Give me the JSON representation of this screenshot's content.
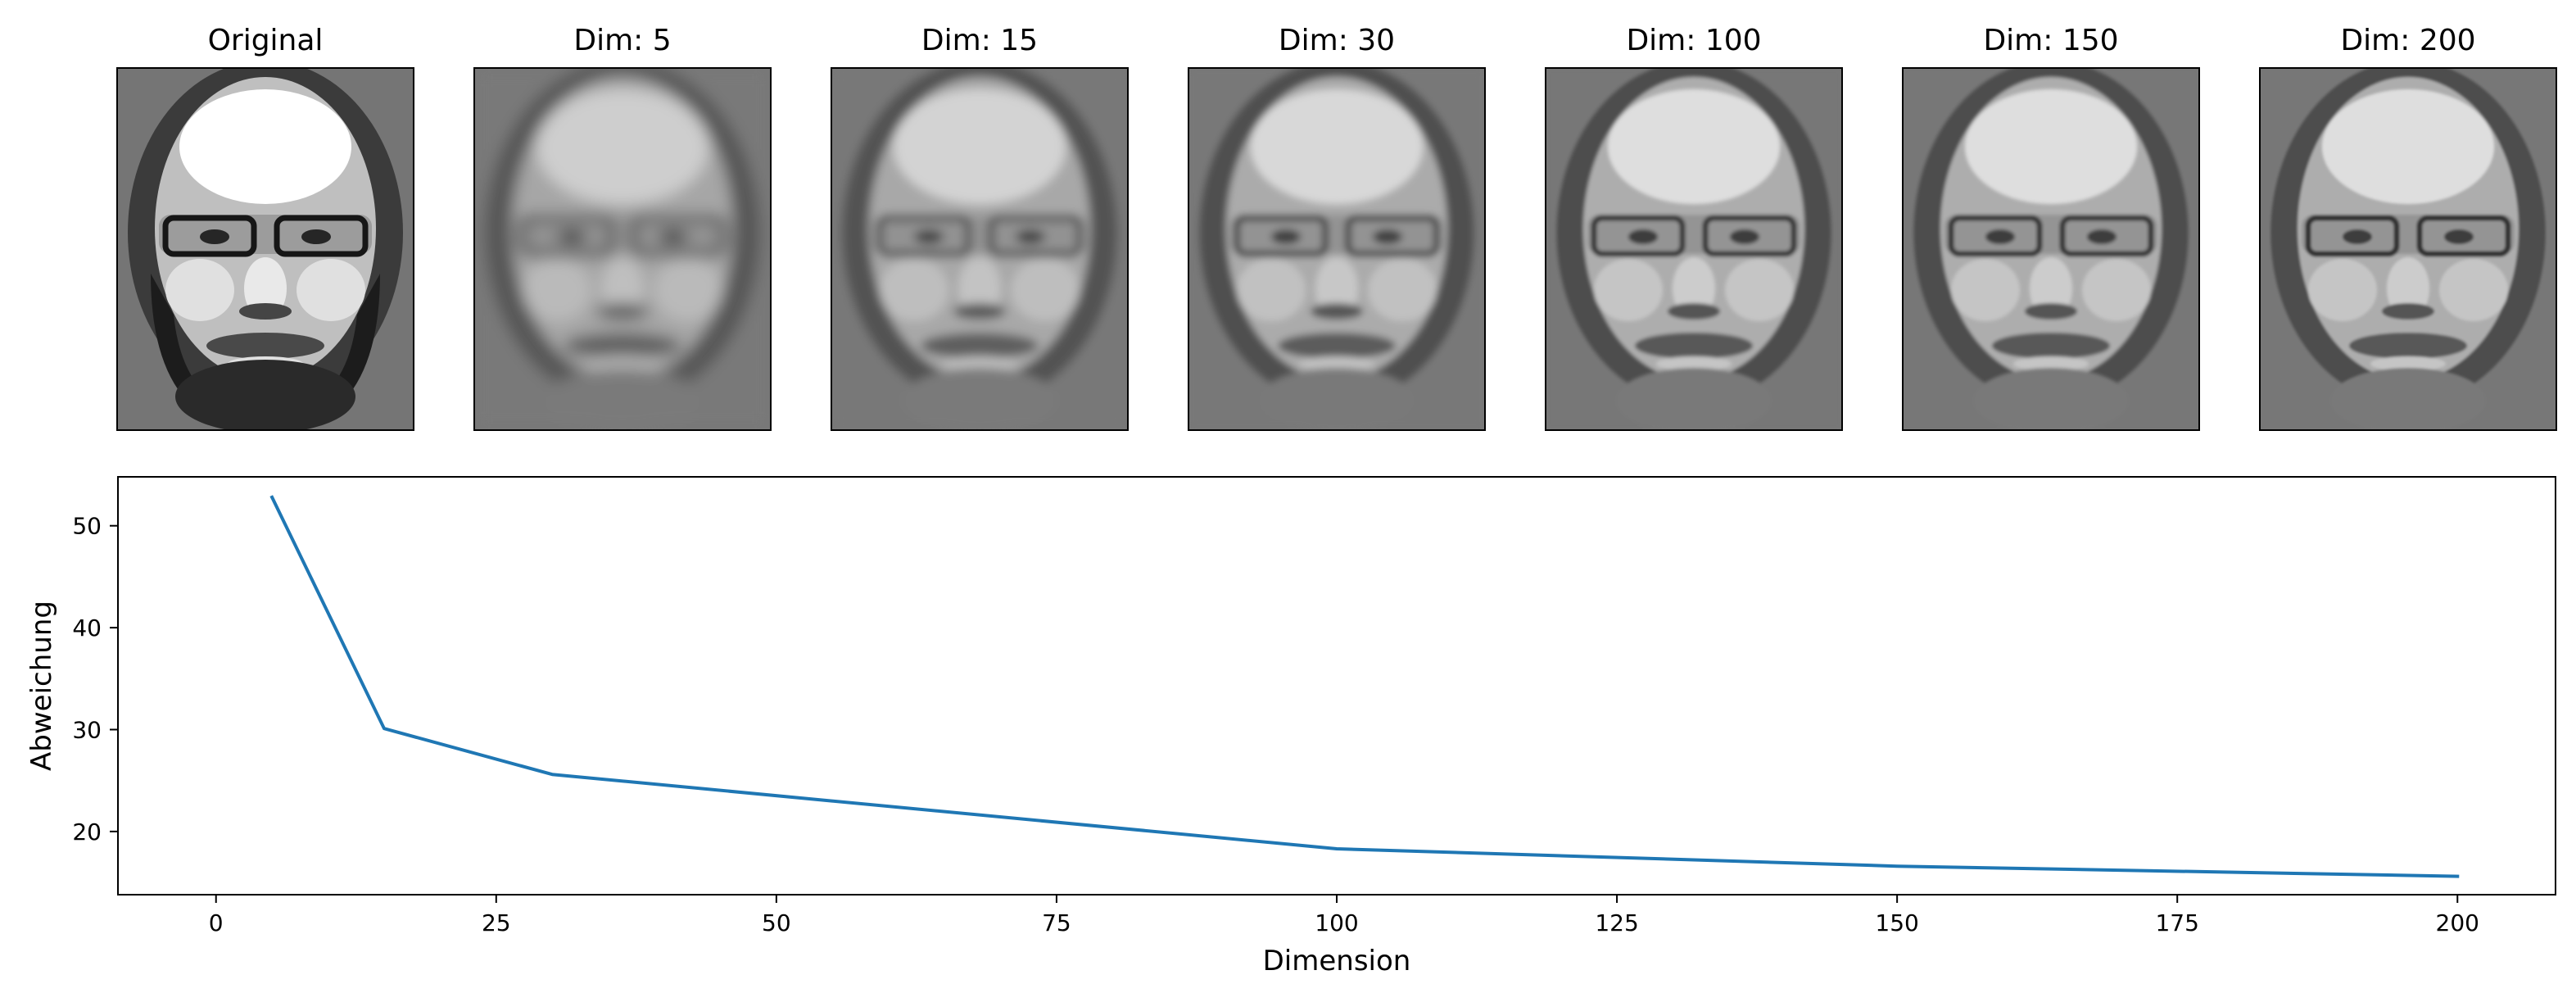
{
  "panels": [
    {
      "title": "Original",
      "icon": "face-image",
      "blur": 0.15,
      "contrast": 1.25,
      "beard": true
    },
    {
      "title": "Dim: 5",
      "icon": "face-image",
      "blur": 9,
      "contrast": 0.75,
      "beard": false
    },
    {
      "title": "Dim: 15",
      "icon": "face-image",
      "blur": 6,
      "contrast": 0.8,
      "beard": false
    },
    {
      "title": "Dim: 30",
      "icon": "face-image",
      "blur": 4.5,
      "contrast": 0.85,
      "beard": false
    },
    {
      "title": "Dim: 100",
      "icon": "face-image",
      "blur": 2.5,
      "contrast": 0.9,
      "beard": false
    },
    {
      "title": "Dim: 150",
      "icon": "face-image",
      "blur": 2,
      "contrast": 0.9,
      "beard": false
    },
    {
      "title": "Dim: 200",
      "icon": "face-image",
      "blur": 1.6,
      "contrast": 0.9,
      "beard": false
    }
  ],
  "chart_data": {
    "type": "line",
    "xlabel": "Dimension",
    "ylabel": "Abweichung",
    "xlim": [
      -8.75,
      208.75
    ],
    "ylim": [
      13.8,
      54.8
    ],
    "x_ticks": [
      0,
      25,
      50,
      75,
      100,
      125,
      150,
      175,
      200
    ],
    "y_ticks": [
      20,
      30,
      40,
      50
    ],
    "grid": false,
    "legend": "none",
    "series": [
      {
        "color": "#1f77b4",
        "x": [
          5,
          15,
          30,
          100,
          150,
          200
        ],
        "y": [
          52.8,
          30.1,
          25.6,
          18.3,
          16.6,
          15.6
        ]
      }
    ]
  }
}
